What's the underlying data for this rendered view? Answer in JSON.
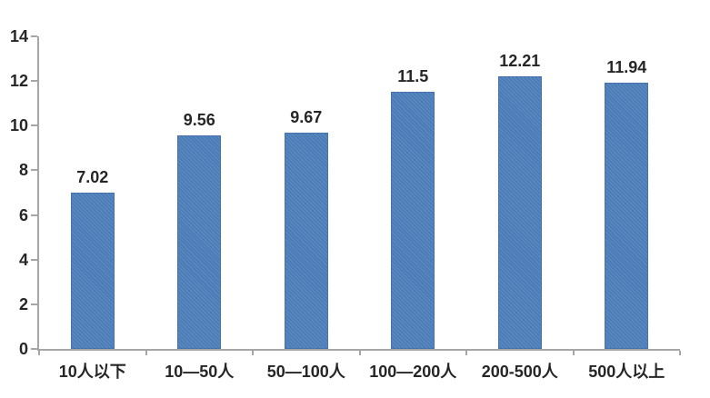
{
  "chart_data": {
    "type": "bar",
    "title": "",
    "xlabel": "",
    "ylabel": "",
    "categories": [
      "10人以下",
      "10—50人",
      "50—100人",
      "100—200人",
      "200-500人",
      "500人以上"
    ],
    "values": [
      7.02,
      9.56,
      9.67,
      11.5,
      12.21,
      11.94
    ],
    "value_labels": [
      "7.02",
      "9.56",
      "9.67",
      "11.5",
      "12.21",
      "11.94"
    ],
    "ylim": [
      0,
      14
    ],
    "yticks": [
      0,
      2,
      4,
      6,
      8,
      10,
      12,
      14
    ],
    "grid": false,
    "legend": "none",
    "colors": {
      "bar": "#4f81bd",
      "axis": "#a6a6a6",
      "text": "#262626",
      "background": "#ffffff"
    }
  }
}
